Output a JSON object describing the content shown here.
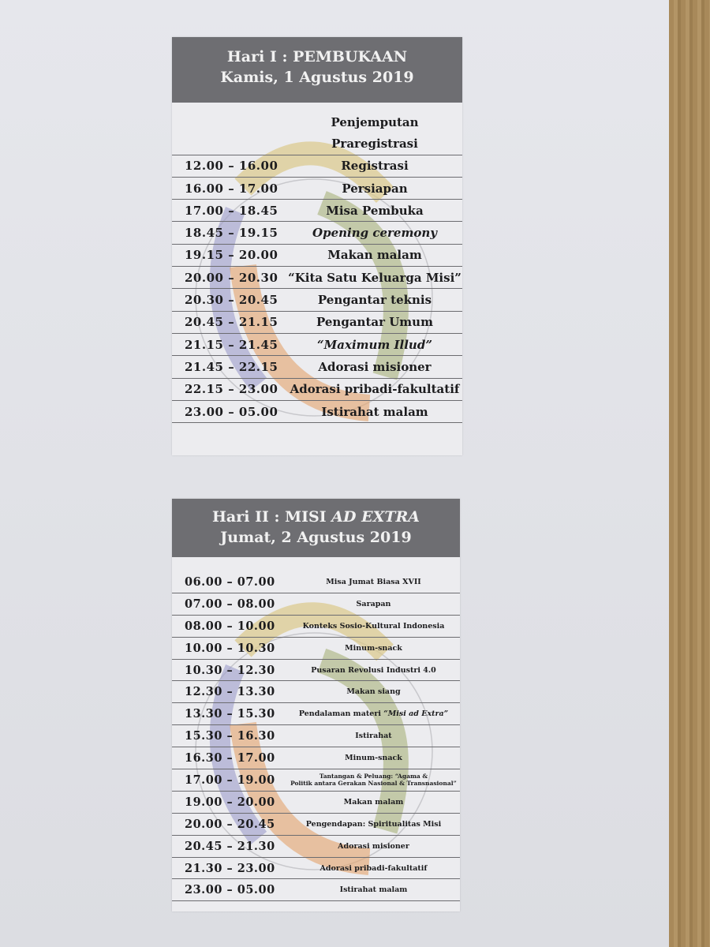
{
  "posters": [
    {
      "title_line1": "Hari I : PEMBUKAAN",
      "title_line2": "Kamis, 1 Agustus 2019",
      "rows": [
        {
          "time": "",
          "activity": "Penjemputan"
        },
        {
          "time": "",
          "activity": "Praregistrasi"
        },
        {
          "time": "12.00 – 16.00",
          "activity": "Registrasi"
        },
        {
          "time": "16.00 – 17.00",
          "activity": "Persiapan"
        },
        {
          "time": "17.00 – 18.45",
          "activity": "Misa Pembuka"
        },
        {
          "time": "18.45 – 19.15",
          "activity": "Opening ceremony",
          "italic": true
        },
        {
          "time": "19.15 – 20.00",
          "activity": "Makan malam"
        },
        {
          "time": "20.00 – 20.30",
          "activity": "“Kita Satu Keluarga Misi”"
        },
        {
          "time": "20.30 – 20.45",
          "activity": "Pengantar teknis"
        },
        {
          "time": "20.45 – 21.15",
          "activity": "Pengantar Umum"
        },
        {
          "time": "21.15 – 21.45",
          "activity": "“Maximum Illud”",
          "italic": true
        },
        {
          "time": "21.45 – 22.15",
          "activity": "Adorasi misioner"
        },
        {
          "time": "22.15 – 23.00",
          "activity": "Adorasi pribadi-fakultatif"
        },
        {
          "time": "23.00 – 05.00",
          "activity": "Istirahat malam"
        }
      ]
    },
    {
      "title_line1_prefix": "Hari II : MISI ",
      "title_line1_italic": "AD EXTRA",
      "title_line2": "Jumat, 2 Agustus 2019",
      "rows": [
        {
          "time": "06.00 – 07.00",
          "activity": "Misa Jumat Biasa XVII"
        },
        {
          "time": "07.00 – 08.00",
          "activity": "Sarapan"
        },
        {
          "time": "08.00 – 10.00",
          "activity": "Konteks Sosio-Kultural Indonesia"
        },
        {
          "time": "10.00 – 10.30",
          "activity": "Minum-snack"
        },
        {
          "time": "10.30 – 12.30",
          "activity": "Pusaran Revolusi Industri 4.0"
        },
        {
          "time": "12.30 – 13.30",
          "activity": "Makan siang"
        },
        {
          "time": "13.30 – 15.30",
          "activity": "Pendalaman materi ",
          "activity_italic": "“Misi ad Extra”"
        },
        {
          "time": "15.30 – 16.30",
          "activity": "Istirahat"
        },
        {
          "time": "16.30 – 17.00",
          "activity": "Minum-snack"
        },
        {
          "time": "17.00 – 19.00",
          "activity": "Tantangan & Peluang: “Agama &",
          "activity_line2": "Politik antara Gerakan Nasional & Transnasional”"
        },
        {
          "time": "19.00 – 20.00",
          "activity": "Makan malam"
        },
        {
          "time": "20.00 – 20.45",
          "activity": "Pengendapan: Spiritualitas Misi"
        },
        {
          "time": "20.45 – 21.30",
          "activity": "Adorasi misioner"
        },
        {
          "time": "21.30 – 23.00",
          "activity": "Adorasi pribadi-fakultatif"
        },
        {
          "time": "23.00 – 05.00",
          "activity": "Istirahat malam"
        }
      ]
    }
  ],
  "colors": {
    "header": "#6e6e72",
    "logo_orange": "#e4a36a",
    "logo_green": "#a9b27a",
    "logo_blue": "#9c9cc9",
    "logo_yellow": "#dcc98a",
    "wood": "#a8895a"
  }
}
